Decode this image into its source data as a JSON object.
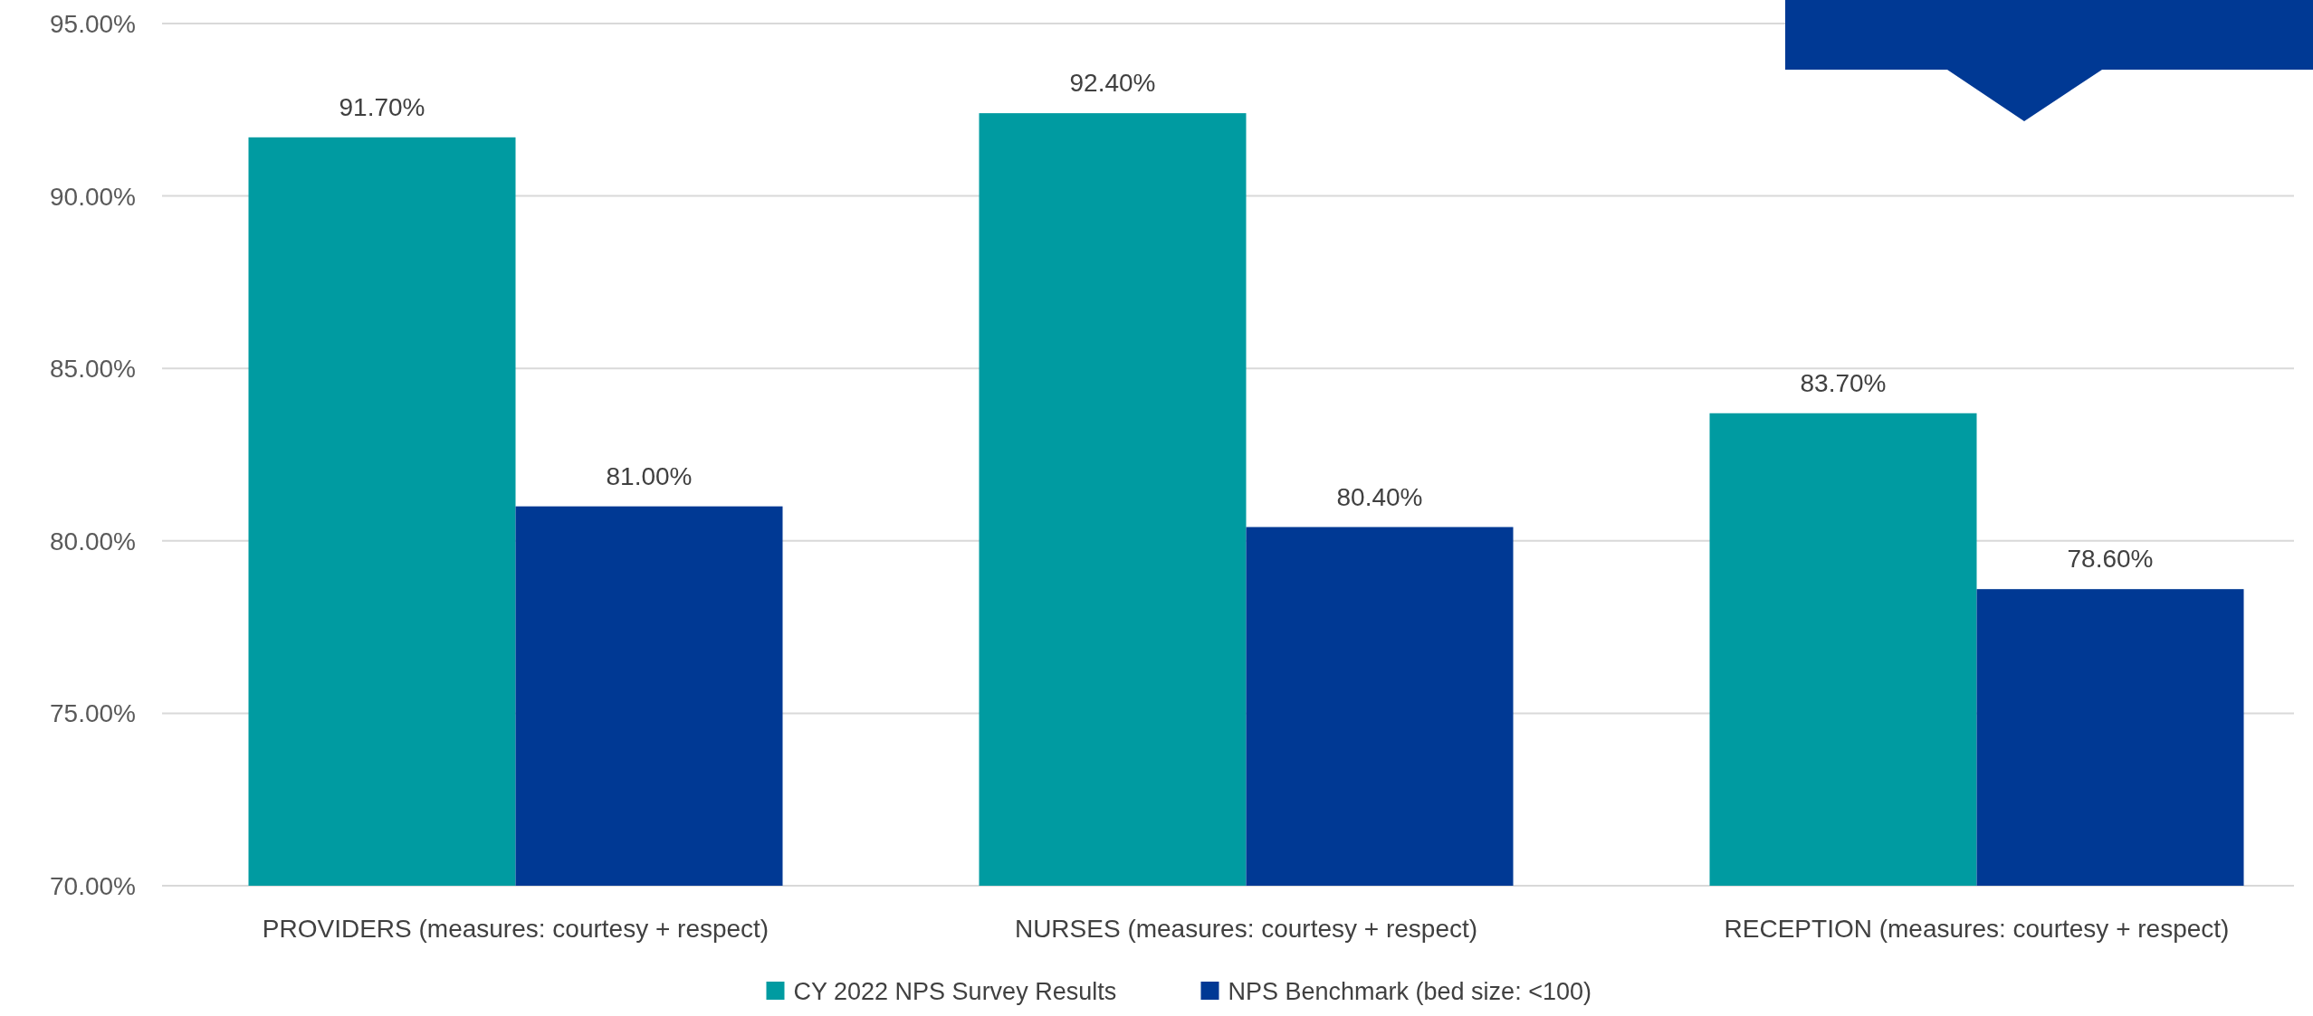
{
  "chart_data": {
    "type": "bar",
    "categories": [
      "PROVIDERS (measures: courtesy + respect)",
      "NURSES (measures: courtesy + respect)",
      "RECEPTION (measures: courtesy + respect)"
    ],
    "series": [
      {
        "name": "CY 2022 NPS Survey Results",
        "color": "#009ba1",
        "values": [
          91.7,
          92.4,
          83.7
        ],
        "value_labels": [
          "91.70%",
          "92.40%",
          "83.70%"
        ]
      },
      {
        "name": "NPS Benchmark (bed size: <100)",
        "color": "#003994",
        "values": [
          81.0,
          80.4,
          78.6
        ],
        "value_labels": [
          "81.00%",
          "80.40%",
          "78.60%"
        ]
      }
    ],
    "ylim": [
      70,
      95
    ],
    "yticks": [
      {
        "value": 70,
        "label": "70.00%"
      },
      {
        "value": 75,
        "label": "75.00%"
      },
      {
        "value": 80,
        "label": "80.00%"
      },
      {
        "value": 85,
        "label": "85.00%"
      },
      {
        "value": 90,
        "label": "90.00%"
      },
      {
        "value": 95,
        "label": "95.00%"
      }
    ],
    "grid": "y",
    "legend": "bottom"
  }
}
